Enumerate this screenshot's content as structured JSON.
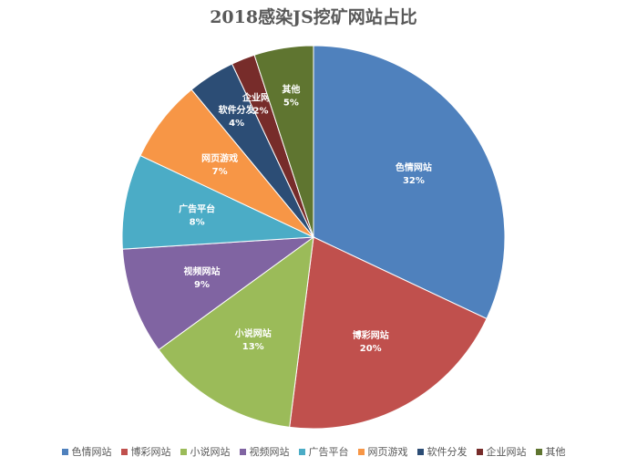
{
  "chart_data": {
    "type": "pie",
    "title": "2018感染JS挖矿网站占比",
    "legend_position": "bottom",
    "slices": [
      {
        "label": "色情网站",
        "value": 32,
        "value_label": "32%",
        "color": "#4F81BD"
      },
      {
        "label": "博彩网站",
        "value": 20,
        "value_label": "20%",
        "color": "#C0504D"
      },
      {
        "label": "小说网站",
        "value": 13,
        "value_label": "13%",
        "color": "#9BBB59"
      },
      {
        "label": "视频网站",
        "value": 9,
        "value_label": "9%",
        "color": "#8064A2"
      },
      {
        "label": "广告平台",
        "value": 8,
        "value_label": "8%",
        "color": "#4BACC6"
      },
      {
        "label": "网页游戏",
        "value": 7,
        "value_label": "7%",
        "color": "#F79646"
      },
      {
        "label": "软件分发",
        "value": 4,
        "value_label": "4%",
        "color": "#2C4D75"
      },
      {
        "label": "企业网站",
        "value": 2,
        "value_label": "2%",
        "color": "#772C2A"
      },
      {
        "label": "其他",
        "value": 5,
        "value_label": "5%",
        "color": "#5F7530"
      }
    ]
  }
}
